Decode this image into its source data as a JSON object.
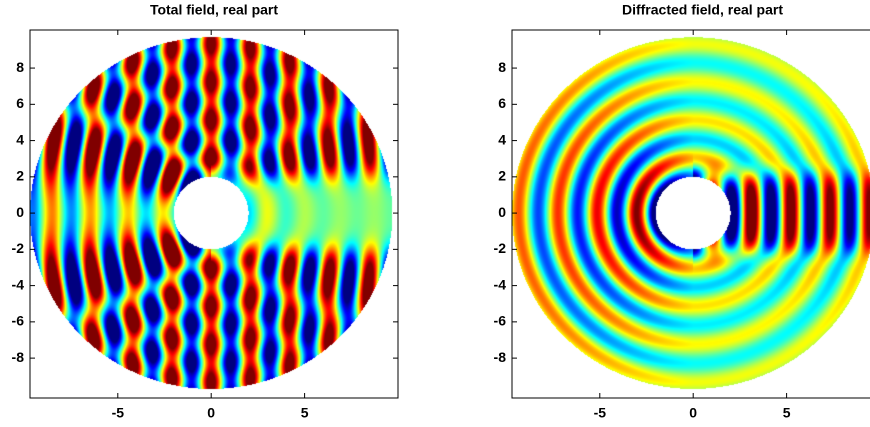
{
  "chart_data": [
    {
      "type": "heatmap",
      "title": "Total field, real part",
      "xlim": [
        -9.7,
        10
      ],
      "ylim": [
        -10.2,
        10.1
      ],
      "xticks": [
        -5,
        0,
        5
      ],
      "yticks": [
        -8,
        -6,
        -4,
        -2,
        0,
        2,
        4,
        6,
        8
      ]
    },
    {
      "type": "heatmap",
      "title": "Diffracted field, real part",
      "xlim": [
        -9.7,
        10
      ],
      "ylim": [
        -10.2,
        10.1
      ],
      "xticks": [
        -5,
        0,
        5
      ],
      "yticks": [
        -8,
        -6,
        -4,
        -2,
        0,
        2,
        4,
        6,
        8
      ]
    }
  ]
}
